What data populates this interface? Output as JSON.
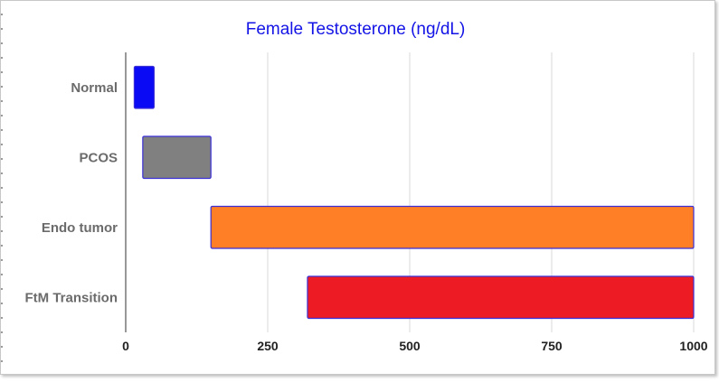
{
  "chart_data": {
    "type": "bar",
    "orientation": "horizontal",
    "style": "floating-range",
    "title": "Female Testosterone (ng/dL)",
    "xlabel": "",
    "ylabel": "",
    "categories": [
      "Normal",
      "PCOS",
      "Endo tumor",
      "FtM Transition"
    ],
    "ranges": [
      {
        "low": 15,
        "high": 50
      },
      {
        "low": 30,
        "high": 150
      },
      {
        "low": 150,
        "high": 1000
      },
      {
        "low": 320,
        "high": 1000
      }
    ],
    "colors": [
      "#0a0af5",
      "#808080",
      "#ff7f27",
      "#ed1c24"
    ],
    "border_color": "#3a2fd6",
    "xlim": [
      0,
      1000
    ],
    "xticks": [
      "0",
      "250",
      "500",
      "750",
      "1000"
    ],
    "grid": true,
    "legend": "none"
  }
}
